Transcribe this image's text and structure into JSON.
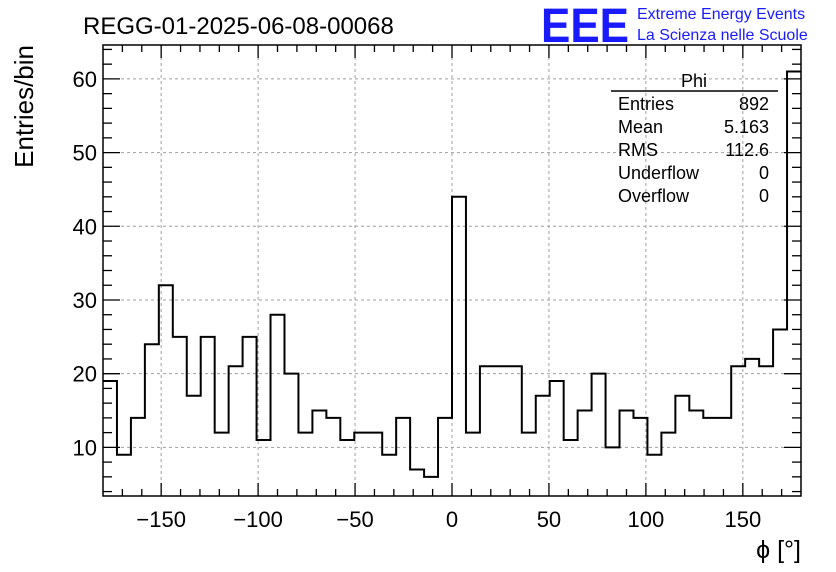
{
  "title": "REGG-01-2025-06-08-00068",
  "logo": {
    "mark": "EEE",
    "line1": "Extreme Energy Events",
    "line2": "La Scienza nelle Scuole",
    "color": "#1a1aff"
  },
  "stats": {
    "name": "Phi",
    "rows": [
      {
        "label": "Entries",
        "value": "892"
      },
      {
        "label": "Mean",
        "value": "5.163"
      },
      {
        "label": "RMS",
        "value": "112.6"
      },
      {
        "label": "Underflow",
        "value": "0"
      },
      {
        "label": "Overflow",
        "value": "0"
      }
    ]
  },
  "chart_data": {
    "type": "histogram",
    "xlabel": "ϕ [°]",
    "ylabel": "Entries/bin",
    "xlim": [
      -180,
      180
    ],
    "ylim": [
      3.4,
      64.6
    ],
    "bin_width": 7.2,
    "grid": true,
    "x_ticks": [
      -150,
      -100,
      -50,
      0,
      50,
      100,
      150
    ],
    "x_tick_labels": [
      "−150",
      "−100",
      "−50",
      "0",
      "50",
      "100",
      "150"
    ],
    "y_ticks": [
      10,
      20,
      30,
      40,
      50,
      60
    ],
    "values": [
      19,
      9,
      14,
      24,
      32,
      25,
      17,
      25,
      12,
      21,
      25,
      11,
      28,
      20,
      12,
      15,
      14,
      11,
      12,
      12,
      9,
      14,
      7,
      6,
      14,
      44,
      12,
      21,
      21,
      21,
      12,
      17,
      19,
      11,
      15,
      20,
      10,
      15,
      14,
      9,
      12,
      17,
      15,
      14,
      14,
      21,
      22,
      21,
      26,
      61
    ],
    "line_color": "#000000"
  }
}
